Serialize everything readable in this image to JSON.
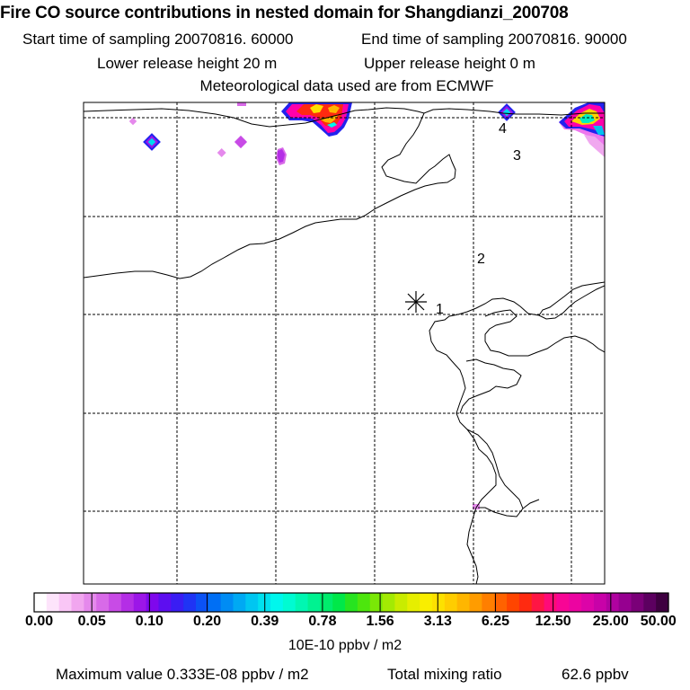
{
  "header": {
    "title": "Fire CO source contributions in nested domain for Shangdianzi_200708",
    "start_time": "Start time of sampling 20070816. 60000",
    "end_time": "End time of sampling 20070816. 90000",
    "lower_release": "Lower release height   20 m",
    "upper_release": "Upper release height    0 m",
    "met_data": "Meteorological data used are from ECMWF"
  },
  "map": {
    "station_marker": "receptor-asterisk",
    "labels": [
      "1",
      "2",
      "3",
      "4"
    ]
  },
  "colorbar": {
    "tick_labels": [
      "0.00",
      "0.05",
      "0.10",
      "0.20",
      "0.39",
      "0.78",
      "1.56",
      "3.13",
      "6.25",
      "12.50",
      "25.00",
      "50.00"
    ],
    "colors": [
      "#ffffff",
      "#fde4fb",
      "#f9c6f6",
      "#f1a6ef",
      "#e589ec",
      "#d86ae8",
      "#c84be6",
      "#b42ee6",
      "#9c16e8",
      "#7f08ec",
      "#5d0ef0",
      "#3a1df3",
      "#1f34f5",
      "#0b52f5",
      "#006ff5",
      "#008cf4",
      "#00a9f3",
      "#00c6f1",
      "#00e1ef",
      "#00f7ed",
      "#00fbd2",
      "#00f7b2",
      "#00f291",
      "#00ec6c",
      "#00e849",
      "#27e420",
      "#4de60d",
      "#7ae806",
      "#a3ea03",
      "#c9ec00",
      "#e6ee00",
      "#f9ee00",
      "#fde100",
      "#ffcd00",
      "#ffb600",
      "#ff9c00",
      "#ff7f00",
      "#ff6200",
      "#ff4500",
      "#ff2a10",
      "#ff1544",
      "#ff0a78",
      "#f80595",
      "#ec04a1",
      "#dc04a8",
      "#c802a8",
      "#b002a0",
      "#960090",
      "#7a0078",
      "#5c0060",
      "#3e0040"
    ],
    "unit": "10E-10 ppbv / m2"
  },
  "footer": {
    "max_value": "Maximum value  0.333E-08 ppbv / m2",
    "total_label": "Total mixing ratio",
    "total_value": "62.6 ppbv"
  }
}
